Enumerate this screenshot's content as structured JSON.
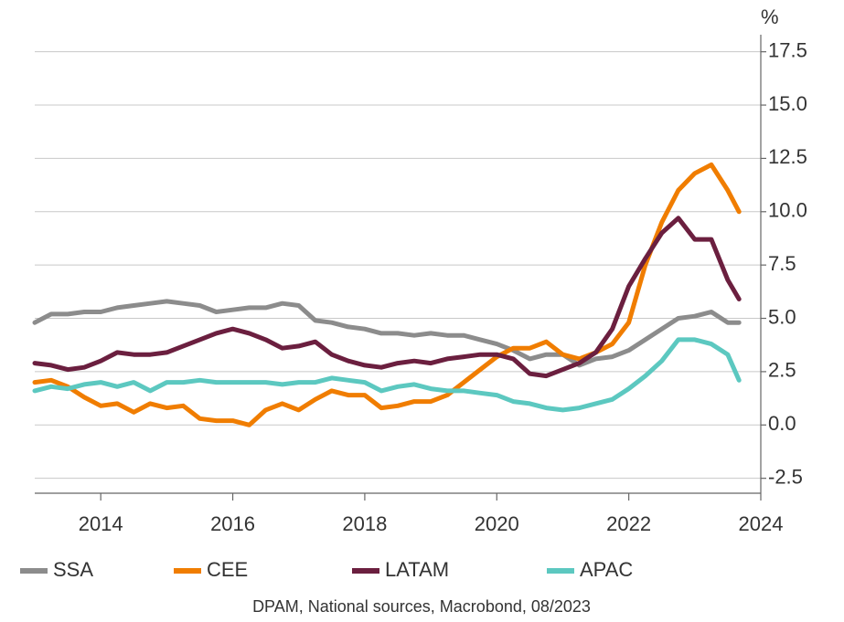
{
  "chart_data": {
    "type": "line",
    "y_label": "%",
    "source": "DPAM, National sources, Macrobond, 08/2023",
    "x": [
      2013.0,
      2013.25,
      2013.5,
      2013.75,
      2014.0,
      2014.25,
      2014.5,
      2014.75,
      2015.0,
      2015.25,
      2015.5,
      2015.75,
      2016.0,
      2016.25,
      2016.5,
      2016.75,
      2017.0,
      2017.25,
      2017.5,
      2017.75,
      2018.0,
      2018.25,
      2018.5,
      2018.75,
      2019.0,
      2019.25,
      2019.5,
      2019.75,
      2020.0,
      2020.25,
      2020.5,
      2020.75,
      2021.0,
      2021.25,
      2021.5,
      2021.75,
      2022.0,
      2022.25,
      2022.5,
      2022.75,
      2023.0,
      2023.25,
      2023.5,
      2023.67
    ],
    "series": [
      {
        "name": "SSA",
        "color": "#8c8c8c",
        "values": [
          4.8,
          5.2,
          5.2,
          5.3,
          5.3,
          5.5,
          5.6,
          5.7,
          5.8,
          5.7,
          5.6,
          5.3,
          5.4,
          5.5,
          5.5,
          5.7,
          5.6,
          4.9,
          4.8,
          4.6,
          4.5,
          4.3,
          4.3,
          4.2,
          4.3,
          4.2,
          4.2,
          4.0,
          3.8,
          3.5,
          3.1,
          3.3,
          3.3,
          2.8,
          3.1,
          3.2,
          3.5,
          4.0,
          4.5,
          5.0,
          5.1,
          5.3,
          4.8,
          4.8
        ]
      },
      {
        "name": "CEE",
        "color": "#f07d00",
        "values": [
          2.0,
          2.1,
          1.8,
          1.3,
          0.9,
          1.0,
          0.6,
          1.0,
          0.8,
          0.9,
          0.3,
          0.2,
          0.2,
          0.0,
          0.7,
          1.0,
          0.7,
          1.2,
          1.6,
          1.4,
          1.4,
          0.8,
          0.9,
          1.1,
          1.1,
          1.4,
          2.0,
          2.6,
          3.2,
          3.6,
          3.6,
          3.9,
          3.3,
          3.1,
          3.4,
          3.8,
          4.8,
          7.5,
          9.5,
          11.0,
          11.8,
          12.2,
          11.0,
          10.0
        ]
      },
      {
        "name": "LATAM",
        "color": "#6b1f3f",
        "values": [
          2.9,
          2.8,
          2.6,
          2.7,
          3.0,
          3.4,
          3.3,
          3.3,
          3.4,
          3.7,
          4.0,
          4.3,
          4.5,
          4.3,
          4.0,
          3.6,
          3.7,
          3.9,
          3.3,
          3.0,
          2.8,
          2.7,
          2.9,
          3.0,
          2.9,
          3.1,
          3.2,
          3.3,
          3.3,
          3.1,
          2.4,
          2.3,
          2.6,
          2.9,
          3.4,
          4.5,
          6.5,
          7.8,
          9.0,
          9.7,
          8.7,
          8.7,
          6.8,
          5.9
        ]
      },
      {
        "name": "APAC",
        "color": "#5cc8c0",
        "values": [
          1.6,
          1.8,
          1.7,
          1.9,
          2.0,
          1.8,
          2.0,
          1.6,
          2.0,
          2.0,
          2.1,
          2.0,
          2.0,
          2.0,
          2.0,
          1.9,
          2.0,
          2.0,
          2.2,
          2.1,
          2.0,
          1.6,
          1.8,
          1.9,
          1.7,
          1.6,
          1.6,
          1.5,
          1.4,
          1.1,
          1.0,
          0.8,
          0.7,
          0.8,
          1.0,
          1.2,
          1.7,
          2.3,
          3.0,
          4.0,
          4.0,
          3.8,
          3.3,
          2.1
        ]
      }
    ],
    "xlim": [
      2013,
      2024
    ],
    "xticks": [
      2014,
      2016,
      2018,
      2020,
      2022,
      2024
    ],
    "ylim": [
      -3.2,
      18.3
    ],
    "yticks": [
      -2.5,
      {
        "value": 0,
        "label": "0.0"
      },
      2.5,
      {
        "value": 5,
        "label": "5.0"
      },
      7.5,
      {
        "value": 10,
        "label": "10.0"
      },
      12.5,
      {
        "value": 15,
        "label": "15.0"
      },
      17.5
    ],
    "grid": true
  }
}
